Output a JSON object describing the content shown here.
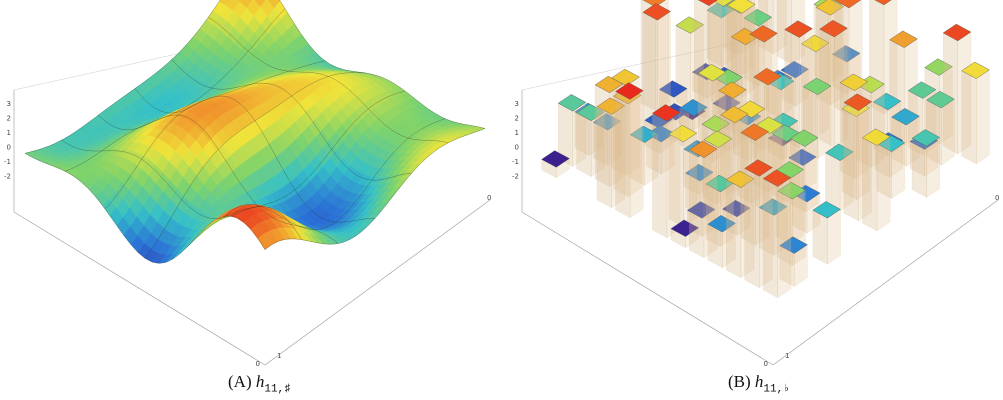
{
  "panels": [
    {
      "caption": {
        "label": "(A)",
        "symbol": "h",
        "subscript": "11,♯"
      },
      "z_ticks": [
        3,
        2,
        1,
        0,
        -1,
        -2
      ],
      "x_ticks": [
        1,
        0
      ],
      "y_ticks": [
        0
      ]
    },
    {
      "caption": {
        "label": "(B)",
        "symbol": "h",
        "subscript": "11,♭"
      },
      "z_ticks": [
        3,
        2,
        1,
        0,
        -1,
        -2
      ],
      "x_ticks": [
        1,
        0
      ],
      "y_ticks": [
        0
      ]
    }
  ]
}
